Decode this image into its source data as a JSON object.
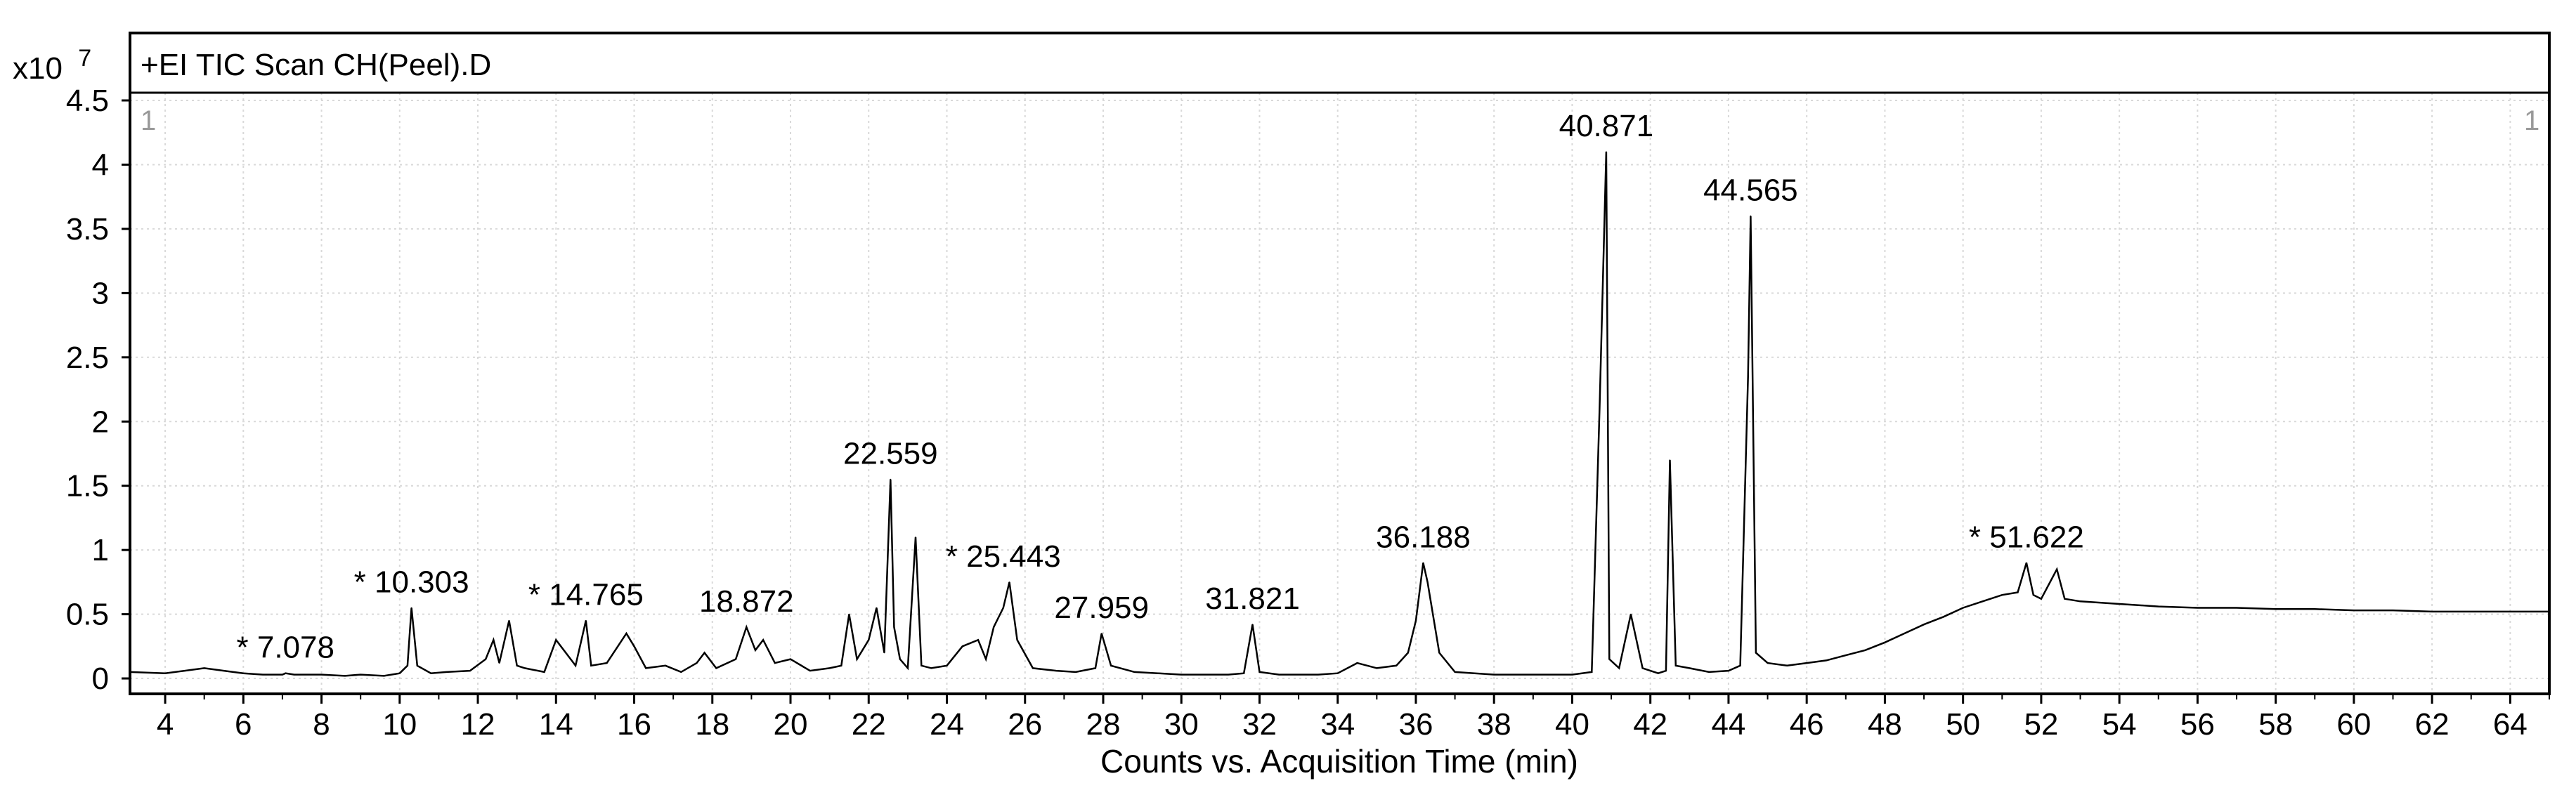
{
  "chart_data": {
    "type": "line",
    "title": "+EI TIC Scan CH(Peel).D",
    "xlabel": "Counts vs. Acquisition Time (min)",
    "ylabel": "",
    "y_multiplier_prefix": "x10",
    "y_multiplier_exp": "7",
    "corner_label_left": "1",
    "corner_label_right": "1",
    "xlim": [
      3.1,
      65.0
    ],
    "ylim": [
      -0.12,
      4.5
    ],
    "x_ticks": [
      4,
      6,
      8,
      10,
      12,
      14,
      16,
      18,
      20,
      22,
      24,
      26,
      28,
      30,
      32,
      34,
      36,
      38,
      40,
      42,
      44,
      46,
      48,
      50,
      52,
      54,
      56,
      58,
      60,
      62,
      64
    ],
    "y_ticks": [
      0,
      0.5,
      1,
      1.5,
      2,
      2.5,
      3,
      3.5,
      4,
      4.5
    ],
    "y_tick_labels": [
      "0",
      "0.5",
      "1",
      "1.5",
      "2",
      "2.5",
      "3",
      "3.5",
      "4",
      "4.5"
    ],
    "grid": true,
    "series": [
      {
        "color": "#000000",
        "x": [
          3.1,
          4.0,
          4.5,
          5.0,
          5.5,
          6.0,
          6.5,
          7.0,
          7.078,
          7.3,
          8.0,
          8.6,
          9.0,
          9.6,
          10.0,
          10.2,
          10.303,
          10.45,
          10.8,
          11.2,
          11.8,
          12.2,
          12.4,
          12.55,
          12.8,
          13.0,
          13.2,
          13.7,
          14.0,
          14.5,
          14.765,
          14.9,
          15.3,
          15.8,
          16.0,
          16.3,
          16.8,
          17.2,
          17.6,
          17.8,
          18.1,
          18.6,
          18.872,
          19.1,
          19.3,
          19.6,
          20.0,
          20.5,
          21.0,
          21.3,
          21.5,
          21.7,
          22.0,
          22.2,
          22.4,
          22.559,
          22.65,
          22.8,
          23.0,
          23.2,
          23.35,
          23.6,
          24.0,
          24.4,
          24.8,
          25.0,
          25.2,
          25.443,
          25.6,
          25.8,
          26.2,
          26.8,
          27.3,
          27.8,
          27.959,
          28.2,
          28.8,
          29.4,
          30.0,
          30.6,
          31.2,
          31.6,
          31.821,
          32.0,
          32.5,
          33.0,
          33.5,
          34.0,
          34.5,
          35.0,
          35.5,
          35.8,
          36.0,
          36.188,
          36.3,
          36.6,
          37.0,
          37.5,
          38.0,
          38.5,
          39.0,
          39.5,
          40.0,
          40.5,
          40.7,
          40.871,
          40.95,
          41.2,
          41.5,
          41.8,
          42.2,
          42.4,
          42.5,
          42.65,
          43.0,
          43.5,
          44.0,
          44.3,
          44.5,
          44.565,
          44.7,
          45.0,
          45.5,
          46.0,
          46.5,
          47.0,
          47.5,
          48.0,
          48.5,
          49.0,
          49.5,
          50.0,
          50.5,
          51.0,
          51.4,
          51.622,
          51.8,
          52.0,
          52.4,
          52.6,
          53.0,
          54.0,
          55.0,
          56.0,
          57.0,
          58.0,
          59.0,
          60.0,
          61.0,
          62.0,
          63.0,
          64.0,
          65.0
        ],
        "y": [
          0.05,
          0.04,
          0.06,
          0.08,
          0.06,
          0.04,
          0.03,
          0.03,
          0.04,
          0.03,
          0.03,
          0.02,
          0.03,
          0.02,
          0.04,
          0.1,
          0.55,
          0.1,
          0.04,
          0.05,
          0.06,
          0.15,
          0.3,
          0.12,
          0.45,
          0.1,
          0.08,
          0.05,
          0.3,
          0.1,
          0.45,
          0.1,
          0.12,
          0.35,
          0.25,
          0.08,
          0.1,
          0.05,
          0.12,
          0.2,
          0.08,
          0.15,
          0.4,
          0.22,
          0.3,
          0.12,
          0.15,
          0.06,
          0.08,
          0.1,
          0.5,
          0.15,
          0.3,
          0.55,
          0.2,
          1.55,
          0.4,
          0.15,
          0.08,
          1.1,
          0.1,
          0.08,
          0.1,
          0.25,
          0.3,
          0.15,
          0.4,
          0.55,
          0.75,
          0.3,
          0.08,
          0.06,
          0.05,
          0.08,
          0.35,
          0.1,
          0.05,
          0.04,
          0.03,
          0.03,
          0.03,
          0.04,
          0.42,
          0.05,
          0.03,
          0.03,
          0.03,
          0.04,
          0.12,
          0.08,
          0.1,
          0.2,
          0.45,
          0.9,
          0.75,
          0.2,
          0.05,
          0.04,
          0.03,
          0.03,
          0.03,
          0.03,
          0.03,
          0.05,
          2.1,
          4.1,
          0.15,
          0.08,
          0.5,
          0.08,
          0.04,
          0.06,
          1.7,
          0.1,
          0.08,
          0.05,
          0.06,
          0.1,
          2.35,
          3.6,
          0.2,
          0.12,
          0.1,
          0.12,
          0.14,
          0.18,
          0.22,
          0.28,
          0.35,
          0.42,
          0.48,
          0.55,
          0.6,
          0.65,
          0.67,
          0.9,
          0.65,
          0.62,
          0.85,
          0.62,
          0.6,
          0.58,
          0.56,
          0.55,
          0.55,
          0.54,
          0.54,
          0.53,
          0.53,
          0.52,
          0.52,
          0.52,
          0.52
        ]
      }
    ],
    "annotations": [
      {
        "text": "* 7.078",
        "x": 7.078,
        "y": 0.04
      },
      {
        "text": "* 10.303",
        "x": 10.303,
        "y": 0.55
      },
      {
        "text": "* 14.765",
        "x": 14.765,
        "y": 0.45
      },
      {
        "text": "18.872",
        "x": 18.872,
        "y": 0.4
      },
      {
        "text": "22.559",
        "x": 22.559,
        "y": 1.55
      },
      {
        "text": "* 25.443",
        "x": 25.443,
        "y": 0.75
      },
      {
        "text": "27.959",
        "x": 27.959,
        "y": 0.35
      },
      {
        "text": "31.821",
        "x": 31.821,
        "y": 0.42
      },
      {
        "text": "36.188",
        "x": 36.188,
        "y": 0.9
      },
      {
        "text": "40.871",
        "x": 40.871,
        "y": 4.1
      },
      {
        "text": "44.565",
        "x": 44.565,
        "y": 3.6
      },
      {
        "text": "* 51.622",
        "x": 51.622,
        "y": 0.9
      }
    ]
  }
}
